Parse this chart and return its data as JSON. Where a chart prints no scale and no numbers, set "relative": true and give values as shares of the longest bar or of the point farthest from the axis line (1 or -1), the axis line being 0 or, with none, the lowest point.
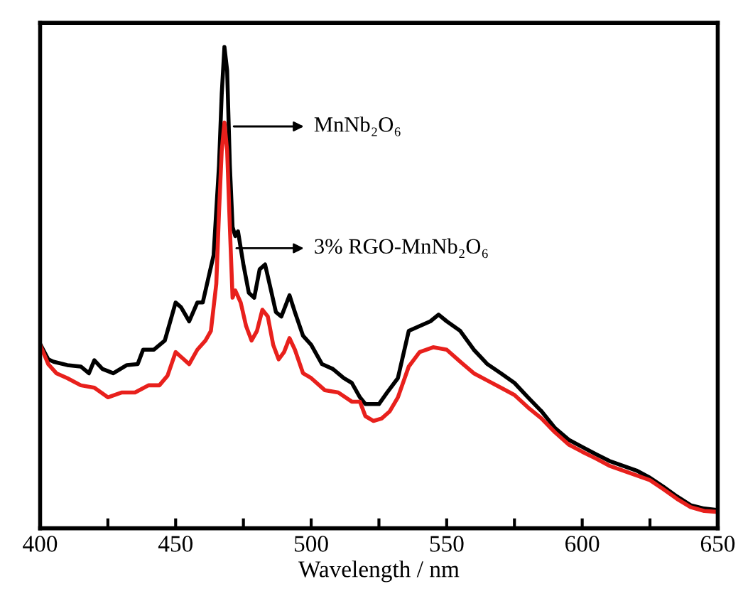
{
  "chart_data": {
    "type": "line",
    "relative": true,
    "xlabel": "Wavelength / nm",
    "xlim": [
      400,
      650
    ],
    "xticks": [
      400,
      {
        "value": 425,
        "label": null
      },
      450,
      {
        "value": 475,
        "label": null
      },
      500,
      {
        "value": 525,
        "label": null
      },
      550,
      {
        "value": 575,
        "label": null
      },
      600,
      {
        "value": 625,
        "label": null
      },
      650
    ],
    "annotations": [
      "MnNb₂O₆",
      "3% RGO-MnNb₂O₆"
    ],
    "grid": false,
    "legend": false,
    "marker": "none",
    "line_style": "solid",
    "tick_labels": "x",
    "series": [
      {
        "color": "#000000",
        "x": [
          400,
          403,
          405,
          410,
          415,
          418,
          420,
          423,
          427,
          432,
          436,
          438,
          442,
          446,
          450,
          452,
          455,
          458,
          460,
          462,
          464,
          466,
          467,
          468,
          469,
          470,
          471,
          472,
          473,
          475,
          477,
          479,
          481,
          483,
          485,
          487,
          489,
          491,
          492,
          494,
          497,
          500,
          504,
          508,
          512,
          515,
          518,
          520,
          525,
          528,
          532,
          536,
          540,
          544,
          547,
          550,
          555,
          560,
          565,
          570,
          575,
          580,
          585,
          590,
          595,
          600,
          605,
          610,
          615,
          620,
          625,
          630,
          635,
          640,
          645,
          650
        ],
        "values": [
          0.383,
          0.351,
          0.346,
          0.339,
          0.336,
          0.322,
          0.349,
          0.331,
          0.322,
          0.339,
          0.341,
          0.371,
          0.371,
          0.39,
          0.469,
          0.459,
          0.43,
          0.469,
          0.469,
          0.518,
          0.567,
          0.754,
          0.902,
          1.0,
          0.951,
          0.754,
          0.626,
          0.607,
          0.617,
          0.548,
          0.489,
          0.479,
          0.538,
          0.548,
          0.499,
          0.449,
          0.44,
          0.469,
          0.484,
          0.449,
          0.4,
          0.381,
          0.341,
          0.331,
          0.312,
          0.302,
          0.272,
          0.258,
          0.258,
          0.282,
          0.312,
          0.41,
          0.42,
          0.43,
          0.444,
          0.43,
          0.41,
          0.371,
          0.341,
          0.322,
          0.302,
          0.272,
          0.243,
          0.208,
          0.184,
          0.169,
          0.154,
          0.14,
          0.13,
          0.12,
          0.105,
          0.086,
          0.066,
          0.048,
          0.041,
          0.038
        ]
      },
      {
        "color": "#e8201c",
        "x": [
          400,
          403,
          406,
          410,
          415,
          420,
          425,
          430,
          435,
          440,
          444,
          447,
          450,
          453,
          455,
          458,
          461,
          463,
          465,
          466,
          467,
          468,
          469,
          470,
          471,
          472,
          474,
          476,
          478,
          480,
          482,
          484,
          486,
          488,
          490,
          492,
          494,
          497,
          500,
          505,
          510,
          515,
          518,
          520,
          523,
          526,
          529,
          532,
          536,
          540,
          545,
          550,
          555,
          560,
          565,
          570,
          575,
          580,
          585,
          590,
          595,
          600,
          605,
          610,
          615,
          620,
          625,
          630,
          635,
          640,
          645,
          650
        ],
        "values": [
          0.381,
          0.341,
          0.322,
          0.312,
          0.297,
          0.292,
          0.272,
          0.282,
          0.282,
          0.297,
          0.297,
          0.317,
          0.366,
          0.351,
          0.341,
          0.371,
          0.39,
          0.41,
          0.508,
          0.656,
          0.784,
          0.843,
          0.784,
          0.626,
          0.479,
          0.494,
          0.469,
          0.42,
          0.39,
          0.41,
          0.454,
          0.44,
          0.381,
          0.351,
          0.366,
          0.395,
          0.371,
          0.322,
          0.312,
          0.287,
          0.282,
          0.263,
          0.263,
          0.233,
          0.223,
          0.228,
          0.243,
          0.272,
          0.336,
          0.366,
          0.376,
          0.371,
          0.346,
          0.322,
          0.307,
          0.292,
          0.277,
          0.251,
          0.228,
          0.199,
          0.174,
          0.159,
          0.145,
          0.13,
          0.12,
          0.11,
          0.1,
          0.081,
          0.061,
          0.044,
          0.036,
          0.034
        ]
      }
    ]
  }
}
